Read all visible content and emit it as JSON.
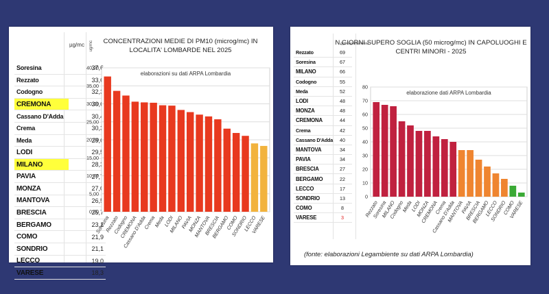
{
  "background_color": "#2e3873",
  "left_panel": {
    "table": {
      "unit_header": "µg/mc",
      "rows": [
        {
          "name": "Soresina",
          "value": "37,6",
          "highlight": false,
          "bold_caps": false
        },
        {
          "name": "Rezzato",
          "value": "33,6",
          "highlight": false,
          "bold_caps": false
        },
        {
          "name": "Codogno",
          "value": "32,3",
          "highlight": false,
          "bold_caps": false
        },
        {
          "name": "CREMONA",
          "value": "30,6",
          "highlight": true,
          "bold_caps": true
        },
        {
          "name": "Cassano D'Adda",
          "value": "30,4",
          "highlight": false,
          "bold_caps": false
        },
        {
          "name": "Crema",
          "value": "30,3",
          "highlight": false,
          "bold_caps": false
        },
        {
          "name": "Meda",
          "value": "29,6",
          "highlight": false,
          "bold_caps": false
        },
        {
          "name": "LODI",
          "value": "29,5",
          "highlight": false,
          "bold_caps": true
        },
        {
          "name": "MILANO",
          "value": "28,3",
          "highlight": true,
          "bold_caps": true
        },
        {
          "name": "PAVIA",
          "value": "27,7",
          "highlight": false,
          "bold_caps": true
        },
        {
          "name": "MONZA",
          "value": "27,0",
          "highlight": false,
          "bold_caps": true
        },
        {
          "name": "MANTOVA",
          "value": "26,5",
          "highlight": false,
          "bold_caps": true
        },
        {
          "name": "BRESCIA",
          "value": "25,7",
          "highlight": false,
          "bold_caps": true
        },
        {
          "name": "BERGAMO",
          "value": "23,1",
          "highlight": false,
          "bold_caps": true
        },
        {
          "name": "COMO",
          "value": "21,9",
          "highlight": false,
          "bold_caps": true
        },
        {
          "name": "SONDRIO",
          "value": "21,1",
          "highlight": false,
          "bold_caps": true
        },
        {
          "name": "LECCO",
          "value": "19,0",
          "highlight": false,
          "bold_caps": true
        },
        {
          "name": "VARESE",
          "value": "18,3",
          "highlight": false,
          "bold_caps": true
        }
      ],
      "highlight_color": "#ffff3b"
    },
    "y_unit_label": "ug/mc"
  },
  "right_panel": {
    "table": {
      "unit_header": "gg. superamento",
      "rows": [
        {
          "name": "Rezzato",
          "value": "69",
          "bold_caps": false,
          "value_color": null
        },
        {
          "name": "Soresina",
          "value": "67",
          "bold_caps": false,
          "value_color": null
        },
        {
          "name": "MILANO",
          "value": "66",
          "bold_caps": true,
          "value_color": null
        },
        {
          "name": "Codogno",
          "value": "55",
          "bold_caps": false,
          "value_color": null
        },
        {
          "name": "Meda",
          "value": "52",
          "bold_caps": false,
          "value_color": null
        },
        {
          "name": "LODI",
          "value": "48",
          "bold_caps": true,
          "value_color": null
        },
        {
          "name": "MONZA",
          "value": "48",
          "bold_caps": true,
          "value_color": null
        },
        {
          "name": "CREMONA",
          "value": "44",
          "bold_caps": true,
          "value_color": null
        },
        {
          "name": "Crema",
          "value": "42",
          "bold_caps": false,
          "value_color": null
        },
        {
          "name": "Cassano D'Adda",
          "value": "40",
          "bold_caps": false,
          "value_color": null
        },
        {
          "name": "MANTOVA",
          "value": "34",
          "bold_caps": true,
          "value_color": null
        },
        {
          "name": "PAVIA",
          "value": "34",
          "bold_caps": true,
          "value_color": null
        },
        {
          "name": "BRESCIA",
          "value": "27",
          "bold_caps": true,
          "value_color": null
        },
        {
          "name": "BERGAMO",
          "value": "22",
          "bold_caps": true,
          "value_color": null
        },
        {
          "name": "LECCO",
          "value": "17",
          "bold_caps": true,
          "value_color": null
        },
        {
          "name": "SONDRIO",
          "value": "13",
          "bold_caps": true,
          "value_color": null
        },
        {
          "name": "COMO",
          "value": "8",
          "bold_caps": true,
          "value_color": null
        },
        {
          "name": "VARESE",
          "value": "3",
          "bold_caps": true,
          "value_color": "#e02020"
        }
      ]
    },
    "source_note": "(fonte: elaborazioni Legambiente su dati ARPA Lombardia)"
  },
  "chart_data": [
    {
      "type": "bar",
      "title": "CONCENTRAZIONI MEDIE DI PM10 (microg/mc) IN LOCALITA' LOMBARDE NEL 2025",
      "title_lines": [
        "CONCENTRAZIONI MEDIE DI PM10 (microg/mc) IN",
        "LOCALITA' LOMBARDE NEL 2025"
      ],
      "subtitle": "elaborazioni su dati ARPA Lombardia",
      "xlabel": "",
      "ylabel": "ug/mc",
      "ylim": [
        0,
        40
      ],
      "yticks": [
        "0,00",
        "5,00",
        "10,00",
        "15,00",
        "20,00",
        "25,00",
        "30,00",
        "35,00",
        "40,00"
      ],
      "grid": true,
      "categories": [
        "Soresina",
        "Rezzato",
        "Codogno",
        "CREMONA",
        "Cassano D'Adda",
        "Crema",
        "Meda",
        "LODI",
        "MILANO",
        "PAVIA",
        "MONZA",
        "MANTOVA",
        "BRESCIA",
        "BERGAMO",
        "COMO",
        "SONDRIO",
        "LECCO",
        "VARESE"
      ],
      "values": [
        37.6,
        33.6,
        32.3,
        30.6,
        30.4,
        30.3,
        29.6,
        29.5,
        28.3,
        27.7,
        27.0,
        26.5,
        25.7,
        23.1,
        21.9,
        21.1,
        19.0,
        18.3
      ],
      "colors": [
        "#e8391f",
        "#e8391f",
        "#e8391f",
        "#e8391f",
        "#e8391f",
        "#e8391f",
        "#e8391f",
        "#e8391f",
        "#e8391f",
        "#e8391f",
        "#e8391f",
        "#e8391f",
        "#e8391f",
        "#e8391f",
        "#e8391f",
        "#e8391f",
        "#f2b33d",
        "#f2b33d"
      ]
    },
    {
      "type": "bar",
      "title": "N.GIORNI SUPERO SOGLIA (50 microg/mc) IN CAPOLUOGHI E CENTRI MINORI - 2025",
      "title_lines": [
        "N.GIORNI SUPERO SOGLIA (50 microg/mc) IN CAPOLUOGHI E",
        "CENTRI MINORI - 2025"
      ],
      "subtitle": "elaborazione dati ARPA Lombardia",
      "xlabel": "",
      "ylabel": "",
      "ylim": [
        0,
        80
      ],
      "yticks": [
        "0",
        "10",
        "20",
        "30",
        "40",
        "50",
        "60",
        "70",
        "80"
      ],
      "grid": true,
      "categories": [
        "Rezzato",
        "Soresina",
        "MILANO",
        "Codogno",
        "Meda",
        "LODI",
        "MONZA",
        "CREMONA",
        "Crema",
        "Cassano D'Adda",
        "MANTOVA",
        "PAVIA",
        "BRESCIA",
        "BERGAMO",
        "LECCO",
        "SONDRIO",
        "COMO",
        "VARESE"
      ],
      "values": [
        69,
        67,
        66,
        55,
        52,
        48,
        48,
        44,
        42,
        40,
        34,
        34,
        27,
        22,
        17,
        13,
        8,
        3
      ],
      "colors": [
        "#c0213f",
        "#c0213f",
        "#c0213f",
        "#c0213f",
        "#c0213f",
        "#c0213f",
        "#c0213f",
        "#c0213f",
        "#c0213f",
        "#c0213f",
        "#ef8530",
        "#ef8530",
        "#ef8530",
        "#ef8530",
        "#ef8530",
        "#ef8530",
        "#3aaa35",
        "#3aaa35"
      ]
    }
  ]
}
